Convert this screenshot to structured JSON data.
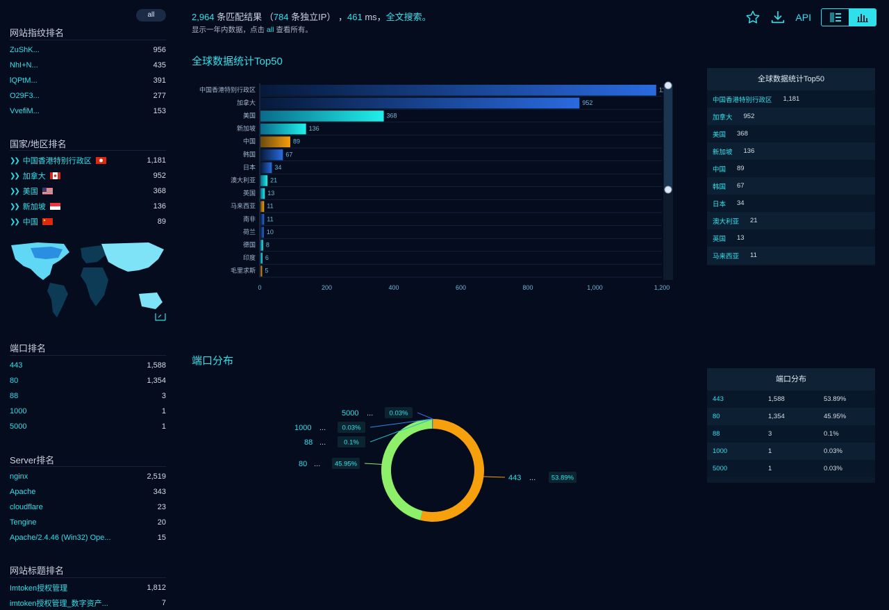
{
  "sidebar": {
    "all_label": "all",
    "fingerprint": {
      "title": "网站指纹排名",
      "items": [
        {
          "k": "ZuShK...",
          "v": "956"
        },
        {
          "k": "NhI+N...",
          "v": "435"
        },
        {
          "k": "lQPtM...",
          "v": "391"
        },
        {
          "k": "O29F3...",
          "v": "277"
        },
        {
          "k": "VvefiM...",
          "v": "153"
        }
      ]
    },
    "country": {
      "title": "国家/地区排名",
      "items": [
        {
          "k": "中国香港特别行政区",
          "v": "1,181"
        },
        {
          "k": "加拿大",
          "v": "952"
        },
        {
          "k": "美国",
          "v": "368"
        },
        {
          "k": "新加坡",
          "v": "136"
        },
        {
          "k": "中国",
          "v": "89"
        }
      ]
    },
    "port": {
      "title": "端口排名",
      "items": [
        {
          "k": "443",
          "v": "1,588"
        },
        {
          "k": "80",
          "v": "1,354"
        },
        {
          "k": "88",
          "v": "3"
        },
        {
          "k": "1000",
          "v": "1"
        },
        {
          "k": "5000",
          "v": "1"
        }
      ]
    },
    "server": {
      "title": "Server排名",
      "items": [
        {
          "k": "nginx",
          "v": "2,519"
        },
        {
          "k": "Apache",
          "v": "343"
        },
        {
          "k": "cloudflare",
          "v": "23"
        },
        {
          "k": "Tengine",
          "v": "20"
        },
        {
          "k": "Apache/2.4.46 (Win32) Ope...",
          "v": "15"
        }
      ]
    },
    "webtitle": {
      "title": "网站标题排名",
      "items": [
        {
          "k": "Imtoken授权管理",
          "v": "1,812"
        },
        {
          "k": "imtoken授权管理_数字资产...",
          "v": "7"
        }
      ]
    }
  },
  "summary": {
    "count": "2,964",
    "count_suffix": " 条匹配结果 （",
    "ip": "784",
    "ip_suffix": " 条独立IP） ，",
    "ms": "461",
    "ms_suffix": " ms，",
    "fulltext": "全文搜索。",
    "sub_prefix": "显示一年内数据，点击 ",
    "sub_all": "all",
    "sub_suffix": " 查看所有。"
  },
  "toolbar": {
    "api_label": "API"
  },
  "bar_chart": {
    "title": "全球数据统计Top50"
  },
  "pie_chart": {
    "title": "端口分布"
  },
  "chart_data": [
    {
      "type": "bar",
      "title": "全球数据统计Top50",
      "orientation": "horizontal",
      "categories": [
        "中国香港特别行政区",
        "加拿大",
        "美国",
        "新加坡",
        "中国",
        "韩国",
        "日本",
        "澳大利亚",
        "英国",
        "马来西亚",
        "南非",
        "荷兰",
        "德国",
        "印度",
        "毛里求斯"
      ],
      "values": [
        1181,
        952,
        368,
        136,
        89,
        67,
        34,
        21,
        13,
        11,
        11,
        10,
        8,
        6,
        5
      ],
      "value_labels": [
        "1181",
        "952",
        "368",
        "136",
        "89",
        "67",
        "34",
        "21",
        "13",
        "11",
        "11",
        "10",
        "8",
        "6",
        "5"
      ],
      "xlim": [
        0,
        1200
      ],
      "xticks": [
        "0",
        "200",
        "400",
        "600",
        "800",
        "1,000",
        "1,200"
      ]
    },
    {
      "type": "pie",
      "title": "端口分布",
      "donut": true,
      "labels": [
        "443",
        "80",
        "88",
        "1000",
        "5000"
      ],
      "values": [
        1588,
        1354,
        3,
        1,
        1
      ],
      "percents": [
        "53.89%",
        "45.95%",
        "0.1%",
        "0.03%",
        "0.03%"
      ],
      "colors": [
        "#f5a00c",
        "#8ef06a",
        "#1fbfc2",
        "#2a8de8",
        "#3a6ddc"
      ]
    }
  ],
  "bar_table": {
    "title": "全球数据统计Top50",
    "rows": [
      {
        "k": "中国香港特别行政区",
        "v": "1,181"
      },
      {
        "k": "加拿大",
        "v": "952"
      },
      {
        "k": "美国",
        "v": "368"
      },
      {
        "k": "新加坡",
        "v": "136"
      },
      {
        "k": "中国",
        "v": "89"
      },
      {
        "k": "韩国",
        "v": "67"
      },
      {
        "k": "日本",
        "v": "34"
      },
      {
        "k": "澳大利亚",
        "v": "21"
      },
      {
        "k": "英国",
        "v": "13"
      },
      {
        "k": "马来西亚",
        "v": "11"
      }
    ]
  },
  "port_table": {
    "title": "端口分布",
    "rows": [
      {
        "p": "443",
        "c": "1,588",
        "pct": "53.89%"
      },
      {
        "p": "80",
        "c": "1,354",
        "pct": "45.95%"
      },
      {
        "p": "88",
        "c": "3",
        "pct": "0.1%"
      },
      {
        "p": "1000",
        "c": "1",
        "pct": "0.03%"
      },
      {
        "p": "5000",
        "c": "1",
        "pct": "0.03%"
      }
    ]
  }
}
